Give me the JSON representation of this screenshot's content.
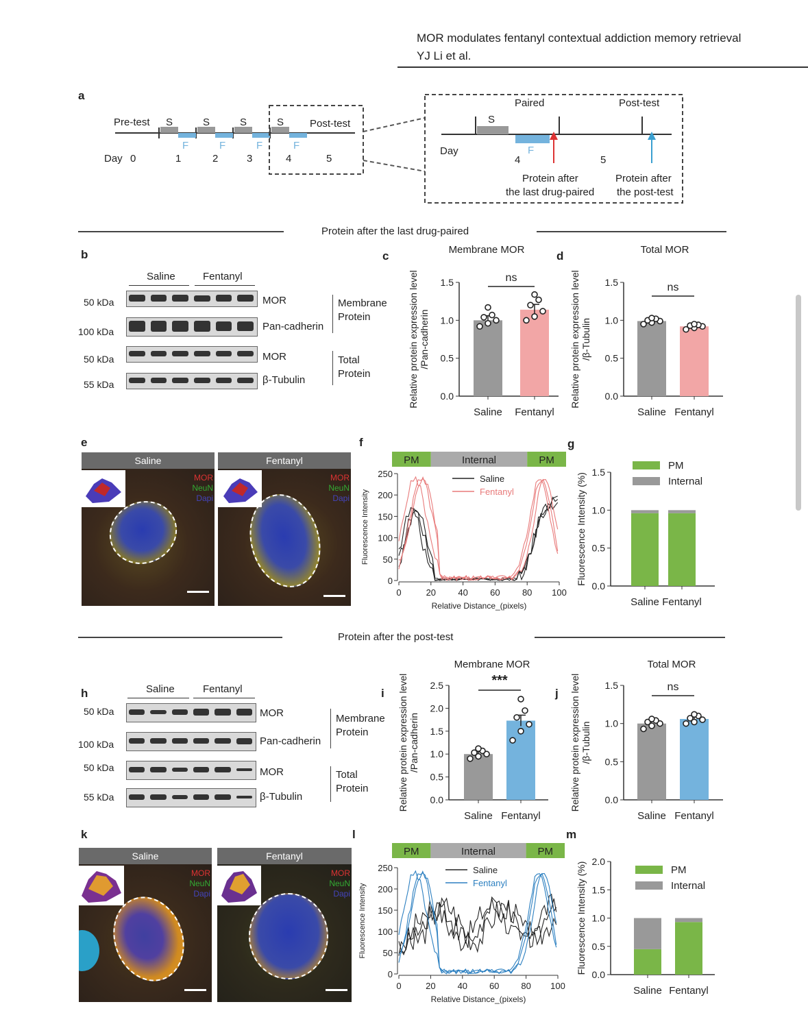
{
  "header": {
    "title": "MOR modulates fentanyl contextual addiction memory retrieval",
    "authors": "YJ Li et al."
  },
  "panel_labels": [
    "a",
    "b",
    "c",
    "d",
    "e",
    "f",
    "g",
    "h",
    "i",
    "j",
    "k",
    "l",
    "m"
  ],
  "panel_a": {
    "pretest": "Pre-test",
    "posttest": "Post-test",
    "day": "Day",
    "days": [
      "0",
      "1",
      "2",
      "3",
      "4",
      "5"
    ],
    "s": "S",
    "f": "F",
    "zoom": {
      "paired": "Paired",
      "posttest": "Post-test",
      "day": "Day",
      "day4": "4",
      "day5": "5",
      "s": "S",
      "f": "F",
      "protein1_l1": "Protein after",
      "protein1_l2": "the last drug-paired",
      "protein2_l1": "Protein after",
      "protein2_l2": "the post-test"
    }
  },
  "sections": {
    "s1": "Protein after the last drug-paired",
    "s2": "Protein after the post-test"
  },
  "wb1": {
    "groups": [
      "Saline",
      "Fentanyl"
    ],
    "rows": [
      {
        "kda": "50 kDa",
        "label": "MOR"
      },
      {
        "kda": "100 kDa",
        "label": "Pan-cadherin"
      },
      {
        "kda": "50 kDa",
        "label": "MOR"
      },
      {
        "kda": "55 kDa",
        "label": "β-Tubulin"
      }
    ],
    "bracket1_l1": "Membrane",
    "bracket1_l2": "Protein",
    "bracket2_l1": "Total",
    "bracket2_l2": "Protein"
  },
  "wb2": {
    "groups": [
      "Saline",
      "Fentanyl"
    ],
    "rows": [
      {
        "kda": "50 kDa",
        "label": "MOR"
      },
      {
        "kda": "100 kDa",
        "label": "Pan-cadherin"
      },
      {
        "kda": "50 kDa",
        "label": "MOR"
      },
      {
        "kda": "55 kDa",
        "label": "β-Tubulin"
      }
    ],
    "bracket1_l1": "Membrane",
    "bracket1_l2": "Protein",
    "bracket2_l1": "Total",
    "bracket2_l2": "Protein"
  },
  "images": {
    "e": {
      "left_title": "Saline",
      "right_title": "Fentanyl"
    },
    "k": {
      "left_title": "Saline",
      "right_title": "Fentanyl"
    },
    "channels": [
      "MOR",
      "NeuN",
      "Dapi"
    ]
  },
  "chart_data": [
    {
      "id": "c",
      "type": "bar",
      "title": "Membrane MOR",
      "ylabel": "Relative protein expression level",
      "ylabel2": "/Pan-cadherin",
      "categories": [
        "Saline",
        "Fentanyl"
      ],
      "values": [
        1.0,
        1.14
      ],
      "errors": [
        0.06,
        0.07
      ],
      "points": [
        [
          0.92,
          0.96,
          1.0,
          1.04,
          1.07,
          1.17
        ],
        [
          1.0,
          1.05,
          1.12,
          1.2,
          1.27,
          1.34
        ]
      ],
      "ylim": [
        0,
        1.5
      ],
      "yticks": [
        "0.0",
        "0.5",
        "1.0",
        "1.5"
      ],
      "sig": "ns",
      "colors": [
        "#999999",
        "#f2a6a6"
      ]
    },
    {
      "id": "d",
      "type": "bar",
      "title": "Total MOR",
      "ylabel": "Relative protein expression level",
      "ylabel2": "/β-Tubulin",
      "categories": [
        "Saline",
        "Fentanyl"
      ],
      "values": [
        0.99,
        0.92
      ],
      "errors": [
        0.02,
        0.02
      ],
      "points": [
        [
          0.95,
          0.97,
          0.99,
          1.0,
          1.02,
          1.03
        ],
        [
          0.88,
          0.9,
          0.92,
          0.93,
          0.94,
          0.95
        ]
      ],
      "ylim": [
        0,
        1.5
      ],
      "yticks": [
        "0.0",
        "0.5",
        "1.0",
        "1.5"
      ],
      "sig": "ns",
      "colors": [
        "#999999",
        "#f2a6a6"
      ]
    },
    {
      "id": "f",
      "type": "line",
      "xlabel": "Relative Distance_(pixels)",
      "ylabel": "Fluorescence Intensity",
      "xlim": [
        0,
        100
      ],
      "ylim": [
        0,
        250
      ],
      "xticks": [
        "0",
        "20",
        "40",
        "60",
        "80",
        "100"
      ],
      "yticks": [
        "0",
        "50",
        "100",
        "150",
        "200",
        "250"
      ],
      "regions": [
        "PM",
        "Internal",
        "PM"
      ],
      "series": [
        {
          "name": "Saline",
          "color": "#222222",
          "profile": "saline"
        },
        {
          "name": "Fentanyl",
          "color": "#e87a7a",
          "profile": "fentanyl"
        }
      ]
    },
    {
      "id": "g",
      "type": "bar",
      "stacked": true,
      "ylabel": "Fluorescence Intensity (%)",
      "categories": [
        "Saline",
        "Fentanyl"
      ],
      "series": [
        {
          "name": "PM",
          "values": [
            0.96,
            0.96
          ],
          "color": "#7ab648"
        },
        {
          "name": "Internal",
          "values": [
            0.04,
            0.04
          ],
          "color": "#999999"
        }
      ],
      "ylim": [
        0,
        1.5
      ],
      "yticks": [
        "0.0",
        "0.5",
        "1.0",
        "1.5"
      ]
    },
    {
      "id": "i",
      "type": "bar",
      "title": "Membrane MOR",
      "ylabel": "Relative protein expression level",
      "ylabel2": "/Pan-cadherin",
      "categories": [
        "Saline",
        "Fentanyl"
      ],
      "values": [
        1.0,
        1.73
      ],
      "errors": [
        0.05,
        0.12
      ],
      "points": [
        [
          0.9,
          0.95,
          1.0,
          1.03,
          1.07,
          1.12
        ],
        [
          1.3,
          1.5,
          1.65,
          1.8,
          1.95,
          2.2
        ]
      ],
      "ylim": [
        0,
        2.5
      ],
      "yticks": [
        "0.0",
        "0.5",
        "1.0",
        "1.5",
        "2.0",
        "2.5"
      ],
      "sig": "***",
      "colors": [
        "#999999",
        "#74b3dd"
      ]
    },
    {
      "id": "j",
      "type": "bar",
      "title": "Total MOR",
      "ylabel": "Relative protein expression level",
      "ylabel2": "/β-Tubulin",
      "categories": [
        "Saline",
        "Fentanyl"
      ],
      "values": [
        1.0,
        1.06
      ],
      "errors": [
        0.03,
        0.03
      ],
      "points": [
        [
          0.93,
          0.97,
          1.0,
          1.02,
          1.04,
          1.06
        ],
        [
          1.0,
          1.02,
          1.05,
          1.07,
          1.1,
          1.12
        ]
      ],
      "ylim": [
        0,
        1.5
      ],
      "yticks": [
        "0.0",
        "0.5",
        "1.0",
        "1.5"
      ],
      "sig": "ns",
      "colors": [
        "#999999",
        "#74b3dd"
      ]
    },
    {
      "id": "l",
      "type": "line",
      "xlabel": "Relative Distance_(pixels)",
      "ylabel": "Fluorescence Intensity",
      "xlim": [
        0,
        100
      ],
      "ylim": [
        0,
        250
      ],
      "xticks": [
        "0",
        "20",
        "40",
        "60",
        "80",
        "100"
      ],
      "yticks": [
        "0",
        "50",
        "100",
        "150",
        "200",
        "250"
      ],
      "regions": [
        "PM",
        "Internal",
        "PM"
      ],
      "series": [
        {
          "name": "Saline",
          "color": "#222222",
          "profile": "saline2"
        },
        {
          "name": "Fentanyl",
          "color": "#2b7fc0",
          "profile": "fentanyl"
        }
      ]
    },
    {
      "id": "m",
      "type": "bar",
      "stacked": true,
      "ylabel": "Fluorescence Intensity (%)",
      "categories": [
        "Saline",
        "Fentanyl"
      ],
      "series": [
        {
          "name": "PM",
          "values": [
            0.45,
            0.93
          ],
          "color": "#7ab648"
        },
        {
          "name": "Internal",
          "values": [
            0.55,
            0.07
          ],
          "color": "#999999"
        }
      ],
      "ylim": [
        0,
        2.0
      ],
      "yticks": [
        "0.0",
        "0.5",
        "1.0",
        "1.5",
        "2.0"
      ]
    }
  ]
}
